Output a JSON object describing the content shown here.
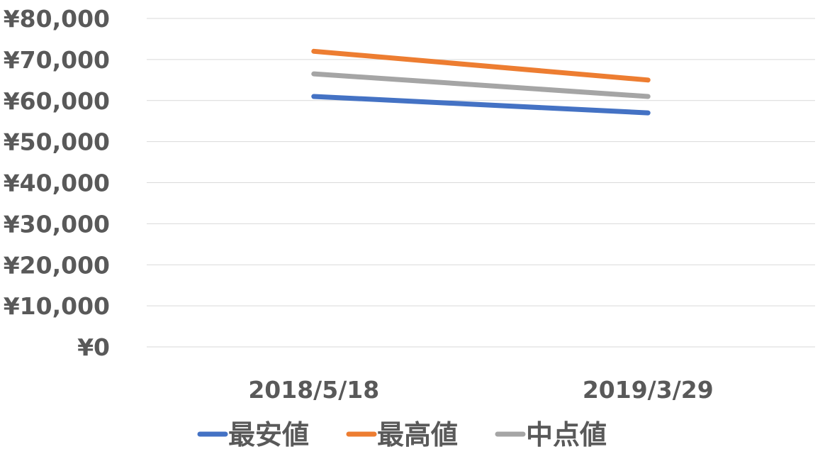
{
  "chart_data": {
    "type": "line",
    "categories": [
      "2018/5/18",
      "2019/3/29"
    ],
    "y_ticks": [
      "¥0",
      "¥10,000",
      "¥20,000",
      "¥30,000",
      "¥40,000",
      "¥50,000",
      "¥60,000",
      "¥70,000",
      "¥80,000"
    ],
    "ylim": [
      0,
      80000
    ],
    "grid": true,
    "legend_position": "bottom",
    "series": [
      {
        "name": "最安値",
        "values": [
          61000,
          57000
        ],
        "color": "#4472C4"
      },
      {
        "name": "最高値",
        "values": [
          72000,
          65000
        ],
        "color": "#ED7D31"
      },
      {
        "name": "中点値",
        "values": [
          66500,
          61000
        ],
        "color": "#A5A5A5"
      }
    ]
  }
}
